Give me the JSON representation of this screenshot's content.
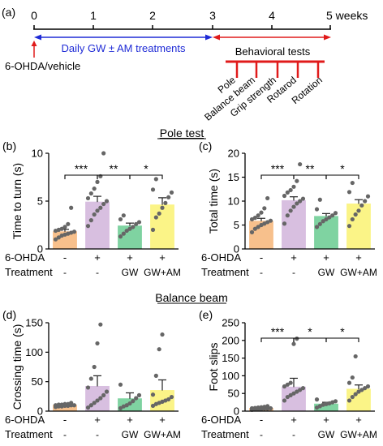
{
  "timeline": {
    "panel_label": "(a)",
    "ticks": [
      "0",
      "1",
      "2",
      "3",
      "4",
      "5 weeks"
    ],
    "treatment_label": "Daily GW ± AM treatments",
    "behavior_label": "Behavioral tests",
    "injection_label": "6-OHDA/vehicle",
    "tests": [
      "Pole",
      "Balance beam",
      "Grip strength",
      "Rotarod",
      "Rotation"
    ],
    "colors": {
      "blue": "#1f2bd6",
      "red": "#e01b1b"
    }
  },
  "sections": {
    "pole": "Pole test",
    "beam": "Balance beam"
  },
  "groups": {
    "ohda_label": "6-OHDA",
    "treatment_label": "Treatment",
    "ohda": [
      "-",
      "+",
      "+",
      "+"
    ],
    "treatment": [
      "-",
      "-",
      "GW",
      "GW+AM"
    ],
    "colors": [
      "#f7c08c",
      "#d8bfe0",
      "#7fd3a1",
      "#fbf487"
    ]
  },
  "chart_data": [
    {
      "panel": "(b)",
      "type": "bar",
      "ylabel": "Time to turn (s)",
      "ylim": [
        0,
        10
      ],
      "yticks": [
        0,
        5,
        10
      ],
      "categories": [
        "6-OHDA - / Treatment -",
        "6-OHDA + / Treatment -",
        "6-OHDA + / GW",
        "6-OHDA + / GW+AM"
      ],
      "values": [
        1.8,
        4.9,
        2.4,
        4.6
      ],
      "errors": [
        0.25,
        0.6,
        0.3,
        0.75
      ],
      "points": [
        [
          1.0,
          1.2,
          1.4,
          1.5,
          1.6,
          1.7,
          1.8,
          1.9,
          2.0,
          2.1,
          2.3,
          2.6,
          4.3
        ],
        [
          2.4,
          3.0,
          3.6,
          4.0,
          4.3,
          4.7,
          5.0,
          5.3,
          5.8,
          6.3,
          7.0,
          7.6,
          10.0
        ],
        [
          1.3,
          1.6,
          1.9,
          2.1,
          2.3,
          2.6,
          2.8,
          3.1,
          3.5
        ],
        [
          2.0,
          3.3,
          3.7,
          4.3,
          4.8,
          5.4,
          5.9,
          6.2,
          7.3
        ]
      ],
      "brackets": [
        {
          "from": 0,
          "to": 1,
          "label": "***"
        },
        {
          "from": 1,
          "to": 2,
          "label": "**"
        },
        {
          "from": 2,
          "to": 3,
          "label": "*"
        }
      ]
    },
    {
      "panel": "(c)",
      "type": "bar",
      "ylabel": "Total time (s)",
      "ylim": [
        0,
        20
      ],
      "yticks": [
        0,
        5,
        10,
        15,
        20
      ],
      "categories": [
        "6-OHDA - / Treatment -",
        "6-OHDA + / Treatment -",
        "6-OHDA + / GW",
        "6-OHDA + / GW+AM"
      ],
      "values": [
        5.8,
        10.1,
        6.8,
        9.4
      ],
      "errors": [
        0.6,
        0.8,
        0.6,
        0.9
      ],
      "points": [
        [
          3.5,
          4.2,
          4.6,
          5.0,
          5.3,
          5.6,
          5.9,
          6.2,
          6.5,
          7.0,
          7.6,
          8.5,
          10.6
        ],
        [
          5.3,
          7.0,
          8.0,
          8.8,
          9.5,
          10.0,
          10.5,
          11.1,
          11.8,
          12.3,
          13.0,
          14.2,
          17.7
        ],
        [
          4.6,
          5.2,
          5.8,
          6.2,
          6.6,
          7.0,
          7.5,
          8.3,
          10.3
        ],
        [
          4.8,
          6.2,
          7.2,
          8.0,
          9.1,
          10.0,
          11.0,
          11.9,
          13.8
        ]
      ],
      "brackets": [
        {
          "from": 0,
          "to": 1,
          "label": "***"
        },
        {
          "from": 1,
          "to": 2,
          "label": "**"
        },
        {
          "from": 2,
          "to": 3,
          "label": "*"
        }
      ]
    },
    {
      "panel": "(d)",
      "type": "bar",
      "ylabel": "Crossing time (s)",
      "ylim": [
        0,
        150
      ],
      "yticks": [
        0,
        50,
        100,
        150
      ],
      "categories": [
        "6-OHDA - / Treatment -",
        "6-OHDA + / Treatment -",
        "6-OHDA + / GW",
        "6-OHDA + / GW+AM"
      ],
      "values": [
        10,
        42,
        21,
        35
      ],
      "errors": [
        1.5,
        18,
        10,
        18
      ],
      "points": [
        [
          7,
          8,
          8,
          9,
          9,
          10,
          10,
          10,
          11,
          11,
          12,
          12,
          14
        ],
        [
          6,
          10,
          14,
          18,
          22,
          27,
          33,
          40,
          55,
          75,
          115,
          147
        ],
        [
          5,
          8,
          10,
          13,
          17,
          22,
          27,
          45
        ],
        [
          9,
          12,
          14,
          16,
          18,
          20,
          24,
          28,
          60,
          105,
          130
        ]
      ],
      "brackets": []
    },
    {
      "panel": "(e)",
      "type": "bar",
      "ylabel": "Foot slips",
      "ylim": [
        0,
        250
      ],
      "yticks": [
        0,
        50,
        100,
        150,
        200,
        250
      ],
      "categories": [
        "6-OHDA - / Treatment -",
        "6-OHDA + / Treatment -",
        "6-OHDA + / GW",
        "6-OHDA + / GW+AM"
      ],
      "values": [
        8,
        68,
        20,
        62
      ],
      "errors": [
        2,
        25,
        5,
        12
      ],
      "points": [
        [
          4,
          5,
          6,
          6,
          7,
          7,
          8,
          8,
          9,
          10,
          11,
          12,
          14
        ],
        [
          30,
          40,
          45,
          50,
          55,
          60,
          65,
          70,
          75,
          80,
          190,
          205
        ],
        [
          10,
          14,
          18,
          20,
          22,
          25,
          28,
          33
        ],
        [
          30,
          40,
          48,
          55,
          60,
          65,
          70,
          80,
          95,
          155
        ]
      ],
      "brackets": [
        {
          "from": 0,
          "to": 1,
          "label": "***"
        },
        {
          "from": 1,
          "to": 2,
          "label": "*"
        },
        {
          "from": 2,
          "to": 3,
          "label": "*"
        }
      ]
    }
  ]
}
